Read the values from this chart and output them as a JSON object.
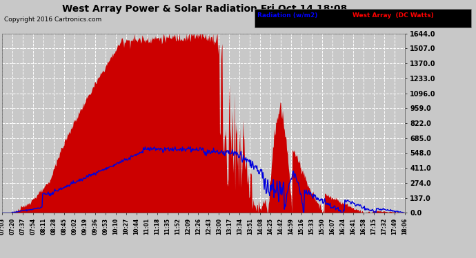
{
  "title": "West Array Power & Solar Radiation Fri Oct 14 18:08",
  "copyright": "Copyright 2016 Cartronics.com",
  "legend_radiation": "Radiation (w/m2)",
  "legend_west": "West Array  (DC Watts)",
  "background_color": "#c8c8c8",
  "plot_bg_color": "#c8c8c8",
  "yticks": [
    0.0,
    137.0,
    274.0,
    411.0,
    548.0,
    685.0,
    822.0,
    959.0,
    1096.0,
    1233.0,
    1370.0,
    1507.0,
    1644.0
  ],
  "ymax": 1644.0,
  "ymin": 0.0,
  "xtick_labels": [
    "07:03",
    "07:20",
    "07:37",
    "07:54",
    "08:11",
    "08:28",
    "08:45",
    "09:02",
    "09:19",
    "09:36",
    "09:53",
    "10:10",
    "10:27",
    "10:44",
    "11:01",
    "11:18",
    "11:35",
    "11:52",
    "12:09",
    "12:26",
    "12:43",
    "13:00",
    "13:17",
    "13:34",
    "13:51",
    "14:08",
    "14:25",
    "14:42",
    "14:59",
    "15:16",
    "15:33",
    "15:50",
    "16:07",
    "16:24",
    "16:41",
    "16:58",
    "17:15",
    "17:32",
    "17:49",
    "18:06"
  ],
  "fill_color": "#cc0000",
  "line_color": "#0000dd",
  "grid_color": "#ffffff",
  "grid_linestyle": "--",
  "yticklabel_fontsize": 7,
  "xticklabel_fontsize": 5.5,
  "title_fontsize": 10,
  "copyright_fontsize": 6.5
}
